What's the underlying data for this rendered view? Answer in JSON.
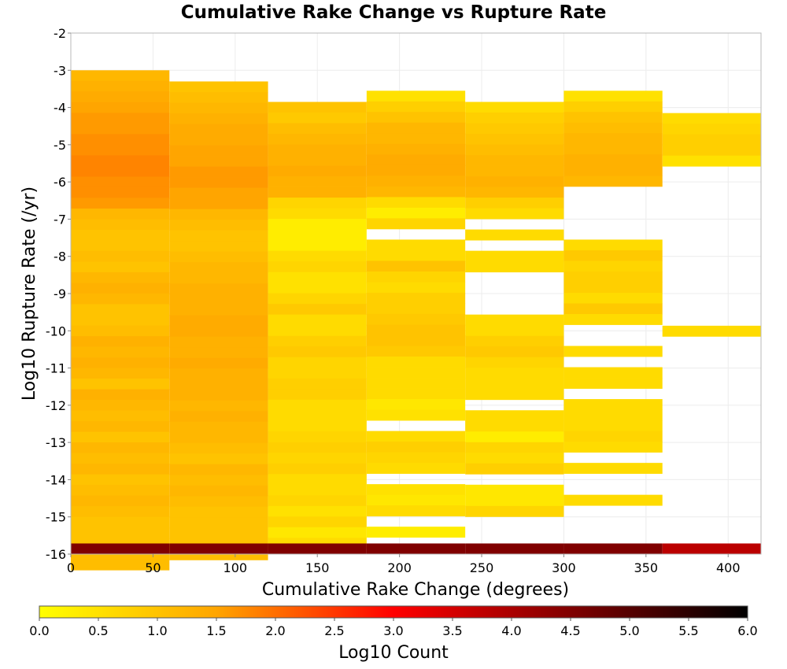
{
  "chart_data": {
    "type": "heatmap",
    "title": "Cumulative Rake Change vs Rupture Rate",
    "xlabel": "Cumulative Rake Change (degrees)",
    "ylabel": "Log10 Rupture Rate (/yr)",
    "xlim": [
      0,
      420
    ],
    "ylim": [
      -16,
      -2
    ],
    "x_ticks": [
      "0",
      "50",
      "100",
      "150",
      "200",
      "250",
      "300",
      "350",
      "400"
    ],
    "y_ticks": [
      "-2",
      "-3",
      "-4",
      "-5",
      "-6",
      "-7",
      "-8",
      "-9",
      "-10",
      "-11",
      "-12",
      "-13",
      "-14",
      "-15",
      "-16"
    ],
    "grid": true,
    "x_bin_edges": [
      0,
      60,
      120,
      180,
      240,
      300,
      360,
      420
    ],
    "y_bin_width": 0.2857,
    "colorbar": {
      "label": "Log10 Count",
      "range": [
        0.0,
        6.0
      ],
      "ticks": [
        "0.0",
        "0.5",
        "1.0",
        "1.5",
        "2.0",
        "2.5",
        "3.0",
        "3.5",
        "4.0",
        "4.5",
        "5.0",
        "5.5",
        "6.0"
      ],
      "colors": [
        "#ffff00",
        "#ffa500",
        "#ff0000",
        "#800000",
        "#000000"
      ],
      "placement": "bottom"
    },
    "columns": [
      {
        "x_range": [
          0,
          60
        ],
        "y_top": -3.0,
        "values": [
          1.2,
          1.3,
          1.4,
          1.5,
          1.6,
          1.6,
          1.7,
          1.7,
          1.8,
          1.8,
          1.7,
          1.7,
          1.6,
          1.2,
          1.1,
          1.0,
          1.0,
          1.1,
          1.0,
          1.2,
          1.3,
          1.2,
          1.0,
          1.0,
          1.1,
          1.3,
          1.2,
          1.3,
          1.2,
          1.0,
          1.3,
          1.2,
          1.1,
          1.2,
          1.0,
          1.2,
          1.1,
          1.2,
          1.0,
          1.1,
          1.2,
          1.1,
          1.0,
          1.0,
          1.0,
          1.1,
          1.1,
          4.5
        ]
      },
      {
        "x_range": [
          60,
          120
        ],
        "y_top": -3.3,
        "values": [
          1.0,
          1.1,
          1.2,
          1.3,
          1.4,
          1.4,
          1.5,
          1.5,
          1.6,
          1.6,
          1.5,
          1.5,
          1.2,
          1.1,
          1.0,
          1.0,
          1.1,
          1.2,
          1.2,
          1.3,
          1.3,
          1.3,
          1.4,
          1.4,
          1.3,
          1.3,
          1.4,
          1.3,
          1.3,
          1.3,
          1.2,
          1.3,
          1.2,
          1.2,
          1.1,
          1.0,
          1.2,
          1.1,
          1.2,
          1.1,
          1.0,
          1.0,
          1.0,
          1.0,
          1.1,
          4.5
        ]
      },
      {
        "x_range": [
          120,
          180
        ],
        "y_top": -3.85,
        "values": [
          1.0,
          0.9,
          1.1,
          1.2,
          1.3,
          1.3,
          1.4,
          1.3,
          1.3,
          0.7,
          0.6,
          0.3,
          0.3,
          0.3,
          0.6,
          0.7,
          0.5,
          0.5,
          0.7,
          0.9,
          0.6,
          0.6,
          0.8,
          0.9,
          0.7,
          0.7,
          0.8,
          0.8,
          0.6,
          0.6,
          0.6,
          0.7,
          0.8,
          0.7,
          0.8,
          0.6,
          0.6,
          0.7,
          0.5,
          0.7,
          0.4,
          0.6,
          4.5
        ]
      },
      {
        "x_range": [
          180,
          240
        ],
        "y_top": -3.55,
        "values": [
          0.5,
          0.8,
          1.0,
          1.2,
          1.2,
          1.3,
          1.4,
          1.4,
          1.3,
          1.2,
          0.6,
          0.3,
          0.7,
          null,
          0.6,
          0.6,
          1.0,
          0.7,
          0.6,
          0.8,
          0.8,
          0.9,
          1.0,
          1.0,
          0.9,
          0.6,
          0.6,
          0.6,
          0.6,
          0.4,
          0.5,
          null,
          0.6,
          0.8,
          0.7,
          0.6,
          null,
          0.5,
          0.4,
          0.6,
          null,
          0.3,
          4.5
        ]
      },
      {
        "x_range": [
          240,
          300
        ],
        "y_top": -3.85,
        "values": [
          0.6,
          0.8,
          0.9,
          1.0,
          1.1,
          1.2,
          1.2,
          1.3,
          1.2,
          0.8,
          0.6,
          null,
          0.6,
          null,
          0.6,
          0.6,
          null,
          null,
          null,
          null,
          0.6,
          0.6,
          0.8,
          0.9,
          0.7,
          0.6,
          0.6,
          0.6,
          null,
          0.6,
          0.6,
          0.3,
          0.7,
          0.6,
          0.8,
          null,
          0.4,
          0.4,
          0.7,
          null,
          4.5
        ]
      },
      {
        "x_range": [
          300,
          360
        ],
        "y_top": -3.55,
        "values": [
          0.5,
          0.8,
          1.0,
          1.1,
          1.2,
          1.2,
          1.3,
          1.3,
          1.2,
          null,
          null,
          null,
          null,
          null,
          0.6,
          0.9,
          0.7,
          0.8,
          0.8,
          0.6,
          0.9,
          0.6,
          null,
          null,
          0.6,
          null,
          0.6,
          0.6,
          null,
          0.6,
          0.6,
          0.6,
          0.7,
          0.6,
          null,
          0.6,
          null,
          null,
          0.6,
          null,
          4.5
        ]
      },
      {
        "x_range": [
          360,
          420
        ],
        "y_top": -4.15,
        "values": [
          0.6,
          0.7,
          0.8,
          0.8,
          0.5,
          null,
          null,
          null,
          null,
          null,
          null,
          null,
          null,
          null,
          null,
          null,
          null,
          null,
          null,
          null,
          0.6,
          null,
          null,
          null,
          null,
          null,
          null,
          null,
          null,
          null,
          null,
          null,
          null,
          null,
          null,
          null,
          null,
          null,
          null,
          null,
          null,
          null,
          3.8
        ]
      }
    ]
  }
}
